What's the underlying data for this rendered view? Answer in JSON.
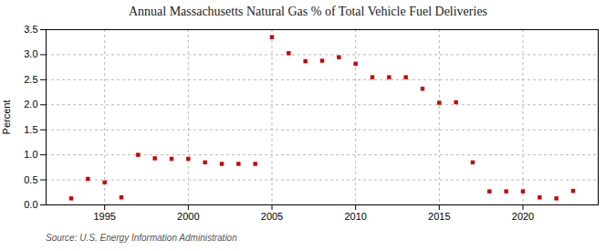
{
  "chart_data": {
    "type": "scatter",
    "title": "Annual Massachusetts Natural Gas % of Total Vehicle Fuel Deliveries",
    "ylabel": "Percent",
    "annotations": [
      "Source: U.S. Energy Information Administration"
    ],
    "x": [
      1993,
      1994,
      1995,
      1996,
      1997,
      1998,
      1999,
      2000,
      2001,
      2002,
      2003,
      2004,
      2005,
      2006,
      2007,
      2008,
      2009,
      2010,
      2011,
      2012,
      2013,
      2014,
      2015,
      2016,
      2017,
      2018,
      2019,
      2020,
      2021,
      2022,
      2023
    ],
    "values": [
      0.13,
      0.52,
      0.45,
      0.15,
      1.0,
      0.93,
      0.92,
      0.92,
      0.85,
      0.82,
      0.82,
      0.82,
      3.35,
      3.03,
      2.87,
      2.88,
      2.95,
      2.82,
      2.55,
      2.55,
      2.55,
      2.32,
      2.04,
      2.05,
      0.85,
      0.27,
      0.27,
      0.27,
      0.15,
      0.13,
      0.28
    ],
    "color": "#cc0000",
    "marker": "square",
    "xlim": [
      1991.5,
      2024.5
    ],
    "ylim": [
      0.0,
      3.5
    ],
    "xticks": [
      1995,
      2000,
      2005,
      2010,
      2015,
      2020
    ],
    "yticks": [
      {
        "value": 0.0,
        "label": "0.0"
      },
      0.5,
      {
        "value": 1.0,
        "label": "1.0"
      },
      1.5,
      {
        "value": 2.0,
        "label": "2.0"
      },
      2.5,
      {
        "value": 3.0,
        "label": "3.0"
      },
      3.5
    ],
    "grid": true
  }
}
